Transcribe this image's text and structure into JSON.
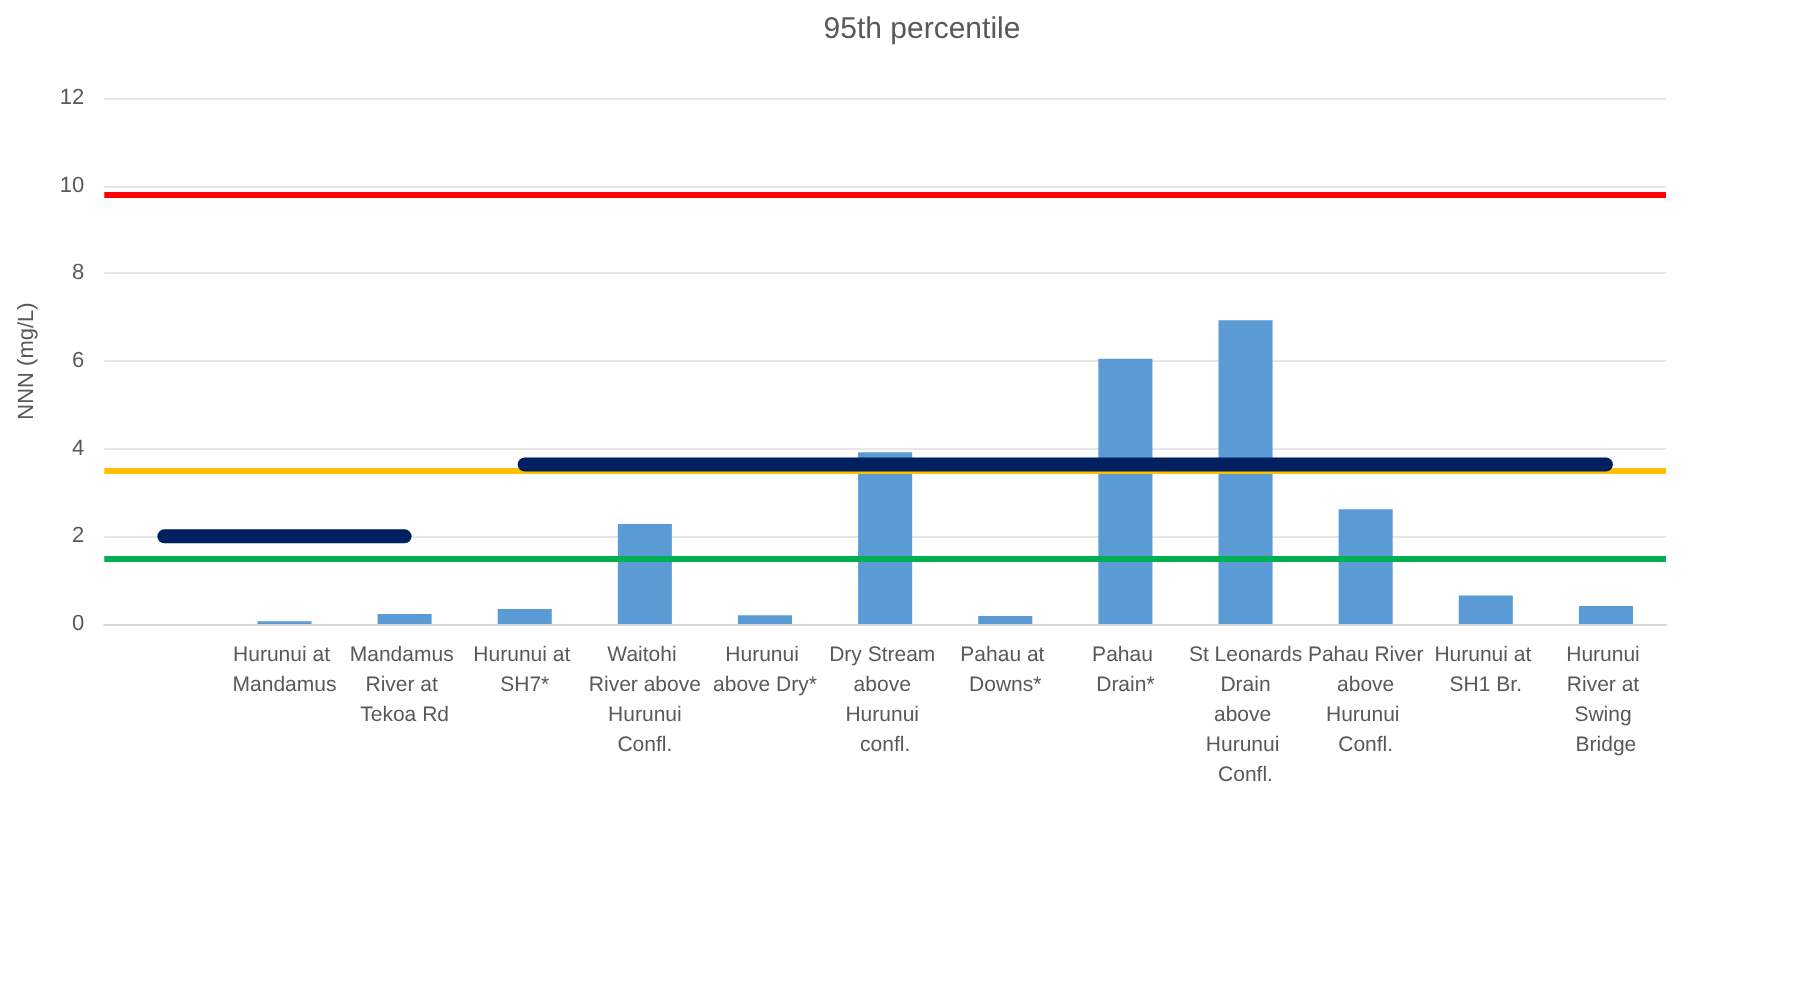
{
  "chart_data": {
    "type": "bar",
    "subtitle": "95th percentile",
    "ylabel": "NNN (mg/L)",
    "categories": [
      null,
      "Hurunui at Mandamus",
      "Mandamus River at Tekoa Rd",
      "Hurunui at SH7*",
      "Waitohi River above Hurunui Confl.",
      "Hurunui above Dry*",
      "Dry Stream above Hurunui confl.",
      "Pahau at Downs*",
      "Pahau Drain*",
      "St Leonards Drain above Hurunui Confl.",
      "Pahau River above Hurunui Confl.",
      "Hurunui at SH1 Br.",
      "Hurunui River at Swing Bridge"
    ],
    "series": [
      {
        "color": "#5b9bd5",
        "values": [
          null,
          0.06,
          0.23,
          0.34,
          2.28,
          0.2,
          3.92,
          0.18,
          6.05,
          6.93,
          2.62,
          0.65,
          0.41
        ]
      },
      {
        "type": "line",
        "color": "#002060",
        "values": [
          2,
          2,
          2,
          null,
          null,
          null,
          null,
          null,
          null,
          null,
          null,
          null,
          null
        ]
      },
      {
        "type": "line",
        "color": "#002060",
        "values": [
          null,
          null,
          null,
          3.64,
          3.64,
          3.64,
          3.64,
          3.64,
          3.64,
          3.64,
          3.64,
          3.64,
          3.64
        ]
      }
    ],
    "ylim": [
      0,
      12
    ],
    "yticks": [
      0,
      2,
      4,
      6,
      8,
      10,
      12
    ],
    "ref_lines": [
      {
        "axis": "y",
        "value": 9.8,
        "color": "#ff0000"
      },
      {
        "axis": "y",
        "value": 3.5,
        "color": "#ffc000"
      },
      {
        "axis": "y",
        "value": 1.5,
        "color": "#00b050"
      }
    ],
    "grid": "y"
  }
}
